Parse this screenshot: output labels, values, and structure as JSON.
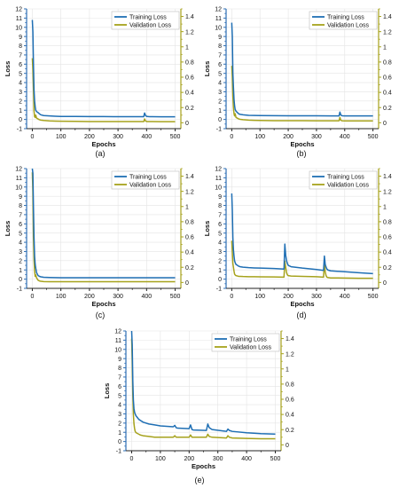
{
  "colors": {
    "training": "#1f6fb4",
    "validation": "#a6a21c",
    "left_axis": "#2f6fb4",
    "right_axis": "#a6a21c",
    "grid": "#e4e4e4"
  },
  "legend": {
    "placement": "top-right",
    "entries": [
      "Training Loss",
      "Validation Loss"
    ]
  },
  "chart_data": [
    {
      "type": "line",
      "caption": "(a)",
      "xlabel": "Epochs",
      "ylabel": "Loss",
      "xlim": [
        -20,
        520
      ],
      "ylim": [
        -1,
        12
      ],
      "y2lim": [
        -0.0778,
        1.5
      ],
      "xticks": [
        0,
        100,
        200,
        300,
        400,
        500
      ],
      "yticks": [
        -1,
        0,
        1,
        2,
        3,
        4,
        5,
        6,
        7,
        8,
        9,
        10,
        11,
        12
      ],
      "y2ticks": [
        0,
        0.2,
        0.4,
        0.6,
        0.8,
        1,
        1.2,
        1.4
      ],
      "grid": true,
      "series": [
        {
          "name": "Training Loss",
          "axis": "left",
          "x": [
            0,
            2,
            4,
            6,
            8,
            10,
            12,
            15,
            20,
            25,
            30,
            40,
            60,
            80,
            100,
            150,
            200,
            250,
            300,
            350,
            390,
            393,
            396,
            399,
            402,
            410,
            420,
            450,
            500
          ],
          "y": [
            10.8,
            9.5,
            6.0,
            3.2,
            2.0,
            1.4,
            1.0,
            0.85,
            0.75,
            0.6,
            0.5,
            0.42,
            0.38,
            0.35,
            0.33,
            0.32,
            0.31,
            0.31,
            0.3,
            0.3,
            0.3,
            0.7,
            0.45,
            0.35,
            0.32,
            0.3,
            0.3,
            0.29,
            0.29
          ]
        },
        {
          "name": "Validation Loss",
          "axis": "right",
          "x": [
            0,
            2,
            4,
            6,
            8,
            10,
            12,
            15,
            20,
            25,
            30,
            40,
            60,
            80,
            100,
            150,
            200,
            250,
            300,
            350,
            390,
            393,
            396,
            399,
            402,
            410,
            420,
            450,
            500
          ],
          "y": [
            0.85,
            0.7,
            0.45,
            0.15,
            0.08,
            0.07,
            0.1,
            0.06,
            0.05,
            0.04,
            0.035,
            0.03,
            0.025,
            0.022,
            0.02,
            0.018,
            0.016,
            0.016,
            0.015,
            0.015,
            0.015,
            0.05,
            0.025,
            0.018,
            0.016,
            0.015,
            0.015,
            0.014,
            0.014
          ]
        }
      ]
    },
    {
      "type": "line",
      "caption": "(b)",
      "xlabel": "Epochs",
      "ylabel": "Loss",
      "xlim": [
        -20,
        520
      ],
      "ylim": [
        -1,
        12
      ],
      "y2lim": [
        -0.0778,
        1.5
      ],
      "xticks": [
        0,
        100,
        200,
        300,
        400,
        500
      ],
      "yticks": [
        -1,
        0,
        1,
        2,
        3,
        4,
        5,
        6,
        7,
        8,
        9,
        10,
        11,
        12
      ],
      "y2ticks": [
        0,
        0.2,
        0.4,
        0.6,
        0.8,
        1,
        1.2,
        1.4
      ],
      "grid": true,
      "series": [
        {
          "name": "Training Loss",
          "axis": "left",
          "x": [
            0,
            2,
            4,
            6,
            8,
            10,
            12,
            15,
            20,
            25,
            30,
            40,
            60,
            80,
            100,
            150,
            200,
            250,
            300,
            350,
            380,
            383,
            386,
            389,
            392,
            400,
            420,
            450,
            500
          ],
          "y": [
            10.5,
            9.0,
            5.0,
            3.5,
            2.2,
            1.5,
            1.1,
            0.9,
            0.75,
            0.6,
            0.55,
            0.5,
            0.45,
            0.43,
            0.42,
            0.41,
            0.4,
            0.4,
            0.4,
            0.39,
            0.39,
            0.8,
            0.5,
            0.42,
            0.4,
            0.39,
            0.39,
            0.38,
            0.38
          ]
        },
        {
          "name": "Validation Loss",
          "axis": "right",
          "x": [
            0,
            2,
            4,
            6,
            8,
            10,
            12,
            15,
            20,
            25,
            30,
            40,
            60,
            80,
            100,
            150,
            200,
            250,
            300,
            350,
            380,
            383,
            386,
            389,
            392,
            400,
            420,
            450,
            500
          ],
          "y": [
            0.75,
            0.6,
            0.35,
            0.2,
            0.12,
            0.09,
            0.12,
            0.07,
            0.06,
            0.05,
            0.045,
            0.04,
            0.035,
            0.032,
            0.03,
            0.028,
            0.027,
            0.027,
            0.026,
            0.026,
            0.026,
            0.07,
            0.035,
            0.028,
            0.026,
            0.025,
            0.025,
            0.025,
            0.025
          ]
        }
      ]
    },
    {
      "type": "line",
      "caption": "(c)",
      "xlabel": "Epochs",
      "ylabel": "Loss",
      "xlim": [
        -20,
        520
      ],
      "ylim": [
        -1,
        12
      ],
      "y2lim": [
        -0.0778,
        1.5
      ],
      "xticks": [
        0,
        100,
        200,
        300,
        400,
        500
      ],
      "yticks": [
        -1,
        0,
        1,
        2,
        3,
        4,
        5,
        6,
        7,
        8,
        9,
        10,
        11,
        12
      ],
      "y2ticks": [
        0,
        0.2,
        0.4,
        0.6,
        0.8,
        1,
        1.2,
        1.4
      ],
      "grid": true,
      "series": [
        {
          "name": "Training Loss",
          "axis": "left",
          "x": [
            0,
            2,
            4,
            6,
            8,
            10,
            12,
            15,
            20,
            25,
            30,
            40,
            60,
            80,
            100,
            150,
            200,
            250,
            300,
            350,
            400,
            450,
            500
          ],
          "y": [
            12,
            11.5,
            7.8,
            4.5,
            2.5,
            1.6,
            1.2,
            0.7,
            0.4,
            0.3,
            0.25,
            0.2,
            0.18,
            0.17,
            0.16,
            0.16,
            0.15,
            0.15,
            0.15,
            0.15,
            0.15,
            0.15,
            0.15
          ]
        },
        {
          "name": "Validation Loss",
          "axis": "right",
          "x": [
            0,
            2,
            4,
            6,
            8,
            10,
            12,
            15,
            20,
            25,
            30,
            40,
            60,
            80,
            100,
            150,
            200,
            250,
            300,
            350,
            400,
            450,
            500
          ],
          "y": [
            1.45,
            1.2,
            0.6,
            0.3,
            0.15,
            0.08,
            0.1,
            0.06,
            0.03,
            0.02,
            0.015,
            0.012,
            0.01,
            0.01,
            0.01,
            0.01,
            0.01,
            0.01,
            0.01,
            0.01,
            0.01,
            0.01,
            0.01
          ]
        }
      ]
    },
    {
      "type": "line",
      "caption": "(d)",
      "xlabel": "Epochs",
      "ylabel": "Loss",
      "xlim": [
        -20,
        520
      ],
      "ylim": [
        -1,
        12
      ],
      "y2lim": [
        -0.0778,
        1.5
      ],
      "xticks": [
        0,
        100,
        200,
        300,
        400,
        500
      ],
      "yticks": [
        -1,
        0,
        1,
        2,
        3,
        4,
        5,
        6,
        7,
        8,
        9,
        10,
        11,
        12
      ],
      "y2ticks": [
        0,
        0.2,
        0.4,
        0.6,
        0.8,
        1,
        1.2,
        1.4
      ],
      "grid": true,
      "series": [
        {
          "name": "Training Loss",
          "axis": "left",
          "x": [
            0,
            2,
            4,
            6,
            8,
            10,
            12,
            15,
            20,
            25,
            30,
            40,
            60,
            80,
            100,
            150,
            185,
            188,
            191,
            194,
            197,
            200,
            210,
            250,
            300,
            325,
            328,
            331,
            334,
            337,
            340,
            350,
            400,
            450,
            500
          ],
          "y": [
            9.3,
            7.5,
            4.5,
            3.2,
            2.5,
            2.0,
            1.8,
            1.6,
            1.5,
            1.4,
            1.35,
            1.3,
            1.25,
            1.22,
            1.2,
            1.15,
            1.1,
            3.8,
            2.6,
            2.0,
            1.7,
            1.5,
            1.35,
            1.2,
            1.05,
            0.95,
            2.5,
            1.6,
            1.3,
            1.1,
            1.0,
            0.9,
            0.8,
            0.7,
            0.6
          ]
        },
        {
          "name": "Validation Loss",
          "axis": "right",
          "x": [
            0,
            2,
            4,
            6,
            8,
            10,
            12,
            15,
            20,
            25,
            30,
            40,
            60,
            80,
            100,
            150,
            185,
            188,
            191,
            194,
            197,
            200,
            210,
            250,
            300,
            325,
            328,
            331,
            334,
            337,
            340,
            350,
            400,
            450,
            500
          ],
          "y": [
            0.55,
            0.4,
            0.25,
            0.2,
            0.15,
            0.11,
            0.1,
            0.09,
            0.085,
            0.08,
            0.08,
            0.078,
            0.076,
            0.075,
            0.074,
            0.072,
            0.07,
            0.28,
            0.2,
            0.13,
            0.1,
            0.09,
            0.085,
            0.08,
            0.075,
            0.07,
            0.26,
            0.14,
            0.09,
            0.07,
            0.065,
            0.06,
            0.058,
            0.055,
            0.055
          ]
        }
      ]
    },
    {
      "type": "line",
      "caption": "(e)",
      "xlabel": "Epochs",
      "ylabel": "Loss",
      "xlim": [
        -20,
        520
      ],
      "ylim": [
        -1,
        12
      ],
      "y2lim": [
        -0.0778,
        1.5
      ],
      "xticks": [
        0,
        100,
        200,
        300,
        400,
        500
      ],
      "yticks": [
        -1,
        0,
        1,
        2,
        3,
        4,
        5,
        6,
        7,
        8,
        9,
        10,
        11,
        12
      ],
      "y2ticks": [
        0,
        0.2,
        0.4,
        0.6,
        0.8,
        1,
        1.2,
        1.4
      ],
      "grid": true,
      "series": [
        {
          "name": "Training Loss",
          "axis": "left",
          "x": [
            0,
            2,
            4,
            6,
            8,
            10,
            12,
            15,
            20,
            25,
            30,
            40,
            60,
            80,
            100,
            145,
            150,
            155,
            160,
            200,
            205,
            210,
            215,
            260,
            265,
            270,
            280,
            330,
            335,
            340,
            350,
            400,
            450,
            500
          ],
          "y": [
            12,
            10.5,
            6.6,
            4.5,
            3.6,
            3.2,
            3.0,
            2.8,
            2.6,
            2.4,
            2.3,
            2.1,
            1.9,
            1.8,
            1.7,
            1.6,
            1.75,
            1.5,
            1.45,
            1.4,
            1.8,
            1.3,
            1.25,
            1.2,
            1.9,
            1.5,
            1.3,
            1.1,
            1.35,
            1.2,
            1.1,
            0.95,
            0.85,
            0.8
          ]
        },
        {
          "name": "Validation Loss",
          "axis": "right",
          "x": [
            0,
            2,
            4,
            6,
            8,
            10,
            12,
            15,
            20,
            25,
            30,
            40,
            60,
            80,
            100,
            145,
            150,
            155,
            160,
            200,
            205,
            210,
            215,
            260,
            265,
            270,
            280,
            330,
            335,
            340,
            350,
            400,
            450,
            500
          ],
          "y": [
            1.4,
            1.1,
            0.65,
            0.4,
            0.28,
            0.22,
            0.18,
            0.16,
            0.15,
            0.14,
            0.13,
            0.12,
            0.11,
            0.1,
            0.1,
            0.1,
            0.12,
            0.1,
            0.1,
            0.1,
            0.13,
            0.1,
            0.1,
            0.1,
            0.14,
            0.11,
            0.1,
            0.09,
            0.12,
            0.1,
            0.09,
            0.085,
            0.08,
            0.08
          ]
        }
      ]
    }
  ]
}
